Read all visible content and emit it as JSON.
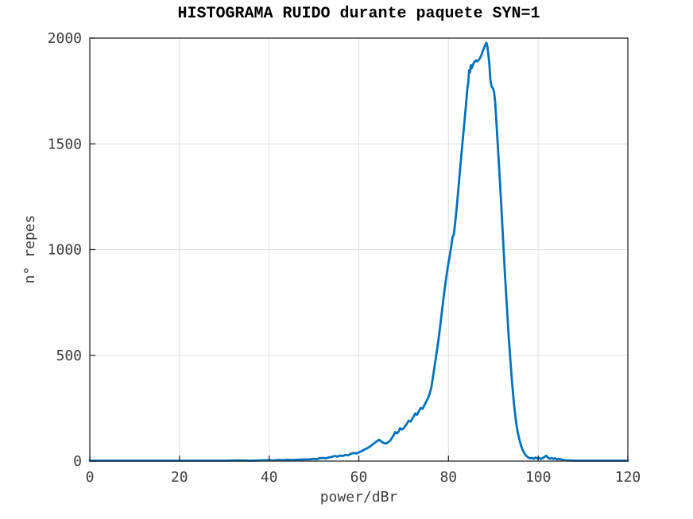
{
  "chart_data": {
    "type": "line",
    "title": "HISTOGRAMA RUIDO durante paquete SYN=1",
    "xlabel": "power/dBr",
    "ylabel": "n° repes",
    "xlim": [
      0,
      120
    ],
    "ylim": [
      0,
      2000
    ],
    "xticks": [
      0,
      20,
      40,
      60,
      80,
      100,
      120
    ],
    "xtick_labels": [
      "0",
      "20",
      "40",
      "60",
      "80",
      "100",
      "120"
    ],
    "yticks": [
      0,
      500,
      1000,
      1500,
      2000
    ],
    "ytick_labels": [
      "0",
      "500",
      "1000",
      "1500",
      "2000"
    ],
    "grid": true,
    "legend": "none",
    "line_color": "#0072bd",
    "grid_color": "#e0e0e0",
    "axis_color": "#262626",
    "text_color": "#3d3d3d",
    "points": [
      [
        0,
        2
      ],
      [
        3,
        2
      ],
      [
        6,
        2
      ],
      [
        9,
        2
      ],
      [
        12,
        2
      ],
      [
        15,
        2
      ],
      [
        18,
        2
      ],
      [
        21,
        2
      ],
      [
        24,
        2
      ],
      [
        27,
        2
      ],
      [
        30,
        2
      ],
      [
        33,
        3
      ],
      [
        36,
        2
      ],
      [
        38,
        3
      ],
      [
        40,
        4
      ],
      [
        41,
        3
      ],
      [
        42,
        5
      ],
      [
        43,
        4
      ],
      [
        44,
        6
      ],
      [
        45,
        5
      ],
      [
        46,
        6
      ],
      [
        47,
        7
      ],
      [
        48,
        8
      ],
      [
        49,
        8
      ],
      [
        50,
        11
      ],
      [
        50.6,
        9
      ],
      [
        51.2,
        13
      ],
      [
        52,
        15
      ],
      [
        52.6,
        13
      ],
      [
        53.2,
        17
      ],
      [
        54,
        20
      ],
      [
        54.6,
        24
      ],
      [
        55.2,
        21
      ],
      [
        55.8,
        26
      ],
      [
        56.4,
        24
      ],
      [
        57,
        29
      ],
      [
        57.6,
        27
      ],
      [
        58.2,
        34
      ],
      [
        58.8,
        38
      ],
      [
        59.4,
        36
      ],
      [
        60,
        41
      ],
      [
        60.6,
        47
      ],
      [
        61.2,
        54
      ],
      [
        61.8,
        60
      ],
      [
        62.4,
        67
      ],
      [
        63,
        77
      ],
      [
        63.6,
        87
      ],
      [
        64.2,
        96
      ],
      [
        64.5,
        101
      ],
      [
        64.9,
        94
      ],
      [
        65.3,
        89
      ],
      [
        65.7,
        84
      ],
      [
        66.1,
        83
      ],
      [
        66.5,
        89
      ],
      [
        67,
        97
      ],
      [
        67.4,
        110
      ],
      [
        67.8,
        124
      ],
      [
        68.1,
        137
      ],
      [
        68.5,
        131
      ],
      [
        68.9,
        140
      ],
      [
        69.2,
        156
      ],
      [
        69.6,
        149
      ],
      [
        70,
        155
      ],
      [
        70.4,
        167
      ],
      [
        70.8,
        179
      ],
      [
        71.1,
        191
      ],
      [
        71.5,
        186
      ],
      [
        71.9,
        199
      ],
      [
        72.3,
        213
      ],
      [
        72.6,
        225
      ],
      [
        73,
        219
      ],
      [
        73.4,
        236
      ],
      [
        73.8,
        251
      ],
      [
        74.2,
        247
      ],
      [
        74.6,
        263
      ],
      [
        75,
        280
      ],
      [
        75.4,
        296
      ],
      [
        75.8,
        318
      ],
      [
        76.2,
        352
      ],
      [
        76.6,
        408
      ],
      [
        77,
        462
      ],
      [
        77.4,
        520
      ],
      [
        77.8,
        578
      ],
      [
        78.2,
        648
      ],
      [
        78.6,
        718
      ],
      [
        79,
        790
      ],
      [
        79.4,
        852
      ],
      [
        79.8,
        912
      ],
      [
        80.2,
        962
      ],
      [
        80.6,
        1012
      ],
      [
        80.9,
        1058
      ],
      [
        81.2,
        1072
      ],
      [
        81.5,
        1128
      ],
      [
        81.9,
        1215
      ],
      [
        82.3,
        1310
      ],
      [
        82.7,
        1408
      ],
      [
        83.1,
        1500
      ],
      [
        83.5,
        1592
      ],
      [
        83.9,
        1682
      ],
      [
        84.2,
        1758
      ],
      [
        84.4,
        1790
      ],
      [
        84.6,
        1848
      ],
      [
        84.8,
        1838
      ],
      [
        85,
        1872
      ],
      [
        85.2,
        1858
      ],
      [
        85.5,
        1876
      ],
      [
        85.8,
        1888
      ],
      [
        86.1,
        1894
      ],
      [
        86.4,
        1890
      ],
      [
        86.7,
        1896
      ],
      [
        87,
        1904
      ],
      [
        87.3,
        1918
      ],
      [
        87.6,
        1936
      ],
      [
        87.9,
        1952
      ],
      [
        88.2,
        1968
      ],
      [
        88.45,
        1978
      ],
      [
        88.7,
        1958
      ],
      [
        88.9,
        1922
      ],
      [
        89.1,
        1880
      ],
      [
        89.35,
        1800
      ],
      [
        89.6,
        1772
      ],
      [
        89.9,
        1762
      ],
      [
        90.15,
        1748
      ],
      [
        90.4,
        1700
      ],
      [
        90.7,
        1598
      ],
      [
        91,
        1490
      ],
      [
        91.4,
        1352
      ],
      [
        91.8,
        1198
      ],
      [
        92.2,
        1035
      ],
      [
        92.6,
        880
      ],
      [
        93,
        738
      ],
      [
        93.4,
        600
      ],
      [
        93.8,
        478
      ],
      [
        94.2,
        368
      ],
      [
        94.6,
        272
      ],
      [
        95,
        196
      ],
      [
        95.4,
        140
      ],
      [
        95.8,
        102
      ],
      [
        96.2,
        72
      ],
      [
        96.6,
        50
      ],
      [
        97,
        34
      ],
      [
        97.4,
        24
      ],
      [
        97.8,
        17
      ],
      [
        98.2,
        13
      ],
      [
        98.6,
        15
      ],
      [
        99,
        11
      ],
      [
        99.4,
        17
      ],
      [
        99.8,
        12
      ],
      [
        100.2,
        15
      ],
      [
        100.6,
        10
      ],
      [
        101,
        14
      ],
      [
        101.4,
        20
      ],
      [
        101.8,
        25
      ],
      [
        102.2,
        16
      ],
      [
        102.6,
        11
      ],
      [
        103,
        15
      ],
      [
        103.4,
        10
      ],
      [
        103.8,
        13
      ],
      [
        104.2,
        8
      ],
      [
        104.6,
        11
      ],
      [
        105,
        9
      ],
      [
        105.4,
        6
      ],
      [
        105.8,
        4
      ],
      [
        106.4,
        3
      ],
      [
        107,
        3
      ],
      [
        108,
        2
      ],
      [
        110,
        2
      ],
      [
        112,
        2
      ],
      [
        114,
        2
      ],
      [
        116,
        2
      ],
      [
        118,
        2
      ],
      [
        120,
        2
      ]
    ]
  }
}
